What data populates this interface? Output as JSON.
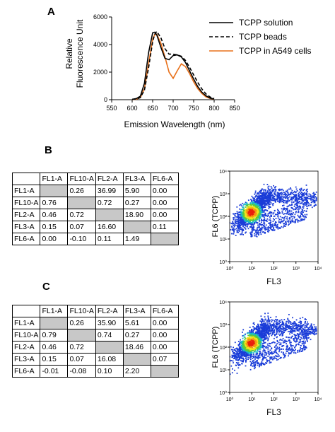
{
  "panels": {
    "a": "A",
    "b": "B",
    "c": "C"
  },
  "chart_data": {
    "type": "line",
    "xlabel": "Emission Wavelength (nm)",
    "ylabel_lines": [
      "Relative",
      "Fluorescence Unit"
    ],
    "xlim": [
      550,
      850
    ],
    "ylim": [
      0,
      6000
    ],
    "xticks": [
      "550",
      "600",
      "650",
      "700",
      "750",
      "800",
      "850"
    ],
    "yticks": [
      "0",
      "2000",
      "4000",
      "6000"
    ],
    "legend_position": "right",
    "x": [
      600,
      610,
      620,
      630,
      640,
      650,
      655,
      660,
      670,
      680,
      690,
      700,
      710,
      720,
      730,
      740,
      750,
      760,
      770,
      780,
      790,
      800
    ],
    "series": [
      {
        "name": "TCPP solution",
        "color": "#000000",
        "dash": "solid",
        "values": [
          30,
          80,
          250,
          1200,
          3400,
          4850,
          4900,
          4700,
          3800,
          3000,
          2900,
          3200,
          3250,
          3100,
          2700,
          2100,
          1500,
          950,
          550,
          280,
          120,
          50
        ]
      },
      {
        "name": "TCPP beads",
        "color": "#000000",
        "dash": "dashed",
        "values": [
          20,
          50,
          150,
          700,
          2300,
          4200,
          4750,
          4950,
          4500,
          3700,
          3300,
          3300,
          3250,
          3150,
          2850,
          2350,
          1800,
          1250,
          780,
          420,
          200,
          80
        ]
      },
      {
        "name": "TCPP in A549 cells",
        "color": "#e8701a",
        "dash": "solid",
        "values": [
          10,
          40,
          150,
          800,
          2600,
          4400,
          4700,
          4750,
          4100,
          3100,
          2000,
          1550,
          2100,
          2600,
          2400,
          1900,
          1300,
          800,
          450,
          200,
          90,
          40
        ]
      }
    ]
  },
  "table_b": {
    "header": [
      "",
      "FL1-A",
      "FL10-A",
      "FL2-A",
      "FL3-A",
      "FL6-A"
    ],
    "rows": [
      [
        "FL1-A",
        "",
        "0.26",
        "36.99",
        "5.90",
        "0.00"
      ],
      [
        "FL10-A",
        "0.76",
        "",
        "0.72",
        "0.27",
        "0.00"
      ],
      [
        "FL2-A",
        "0.46",
        "0.72",
        "",
        "18.90",
        "0.00"
      ],
      [
        "FL3-A",
        "0.15",
        "0.07",
        "16.60",
        "",
        "0.11"
      ],
      [
        "FL6-A",
        "0.00",
        "-0.10",
        "0.11",
        "1.49",
        ""
      ]
    ]
  },
  "table_c": {
    "header": [
      "",
      "FL1-A",
      "FL10-A",
      "FL2-A",
      "FL3-A",
      "FL6-A"
    ],
    "rows": [
      [
        "FL1-A",
        "",
        "0.26",
        "35.90",
        "5.61",
        "0.00"
      ],
      [
        "FL10-A",
        "0.79",
        "",
        "0.74",
        "0.27",
        "0.00"
      ],
      [
        "FL2-A",
        "0.46",
        "0.72",
        "",
        "18.46",
        "0.00"
      ],
      [
        "FL3-A",
        "0.15",
        "0.07",
        "16.08",
        "",
        "0.07"
      ],
      [
        "FL6-A",
        "-0.01",
        "-0.08",
        "0.10",
        "2.20",
        ""
      ]
    ]
  },
  "flow_plot": {
    "xlabel": "FL3",
    "ylabel": "FL6 (TCPP)",
    "xticks": [
      "10⁰",
      "10¹",
      "10²",
      "10³",
      "10⁴"
    ],
    "yticks": [
      "10⁰",
      "10¹",
      "10²",
      "10³",
      "10⁴"
    ]
  }
}
